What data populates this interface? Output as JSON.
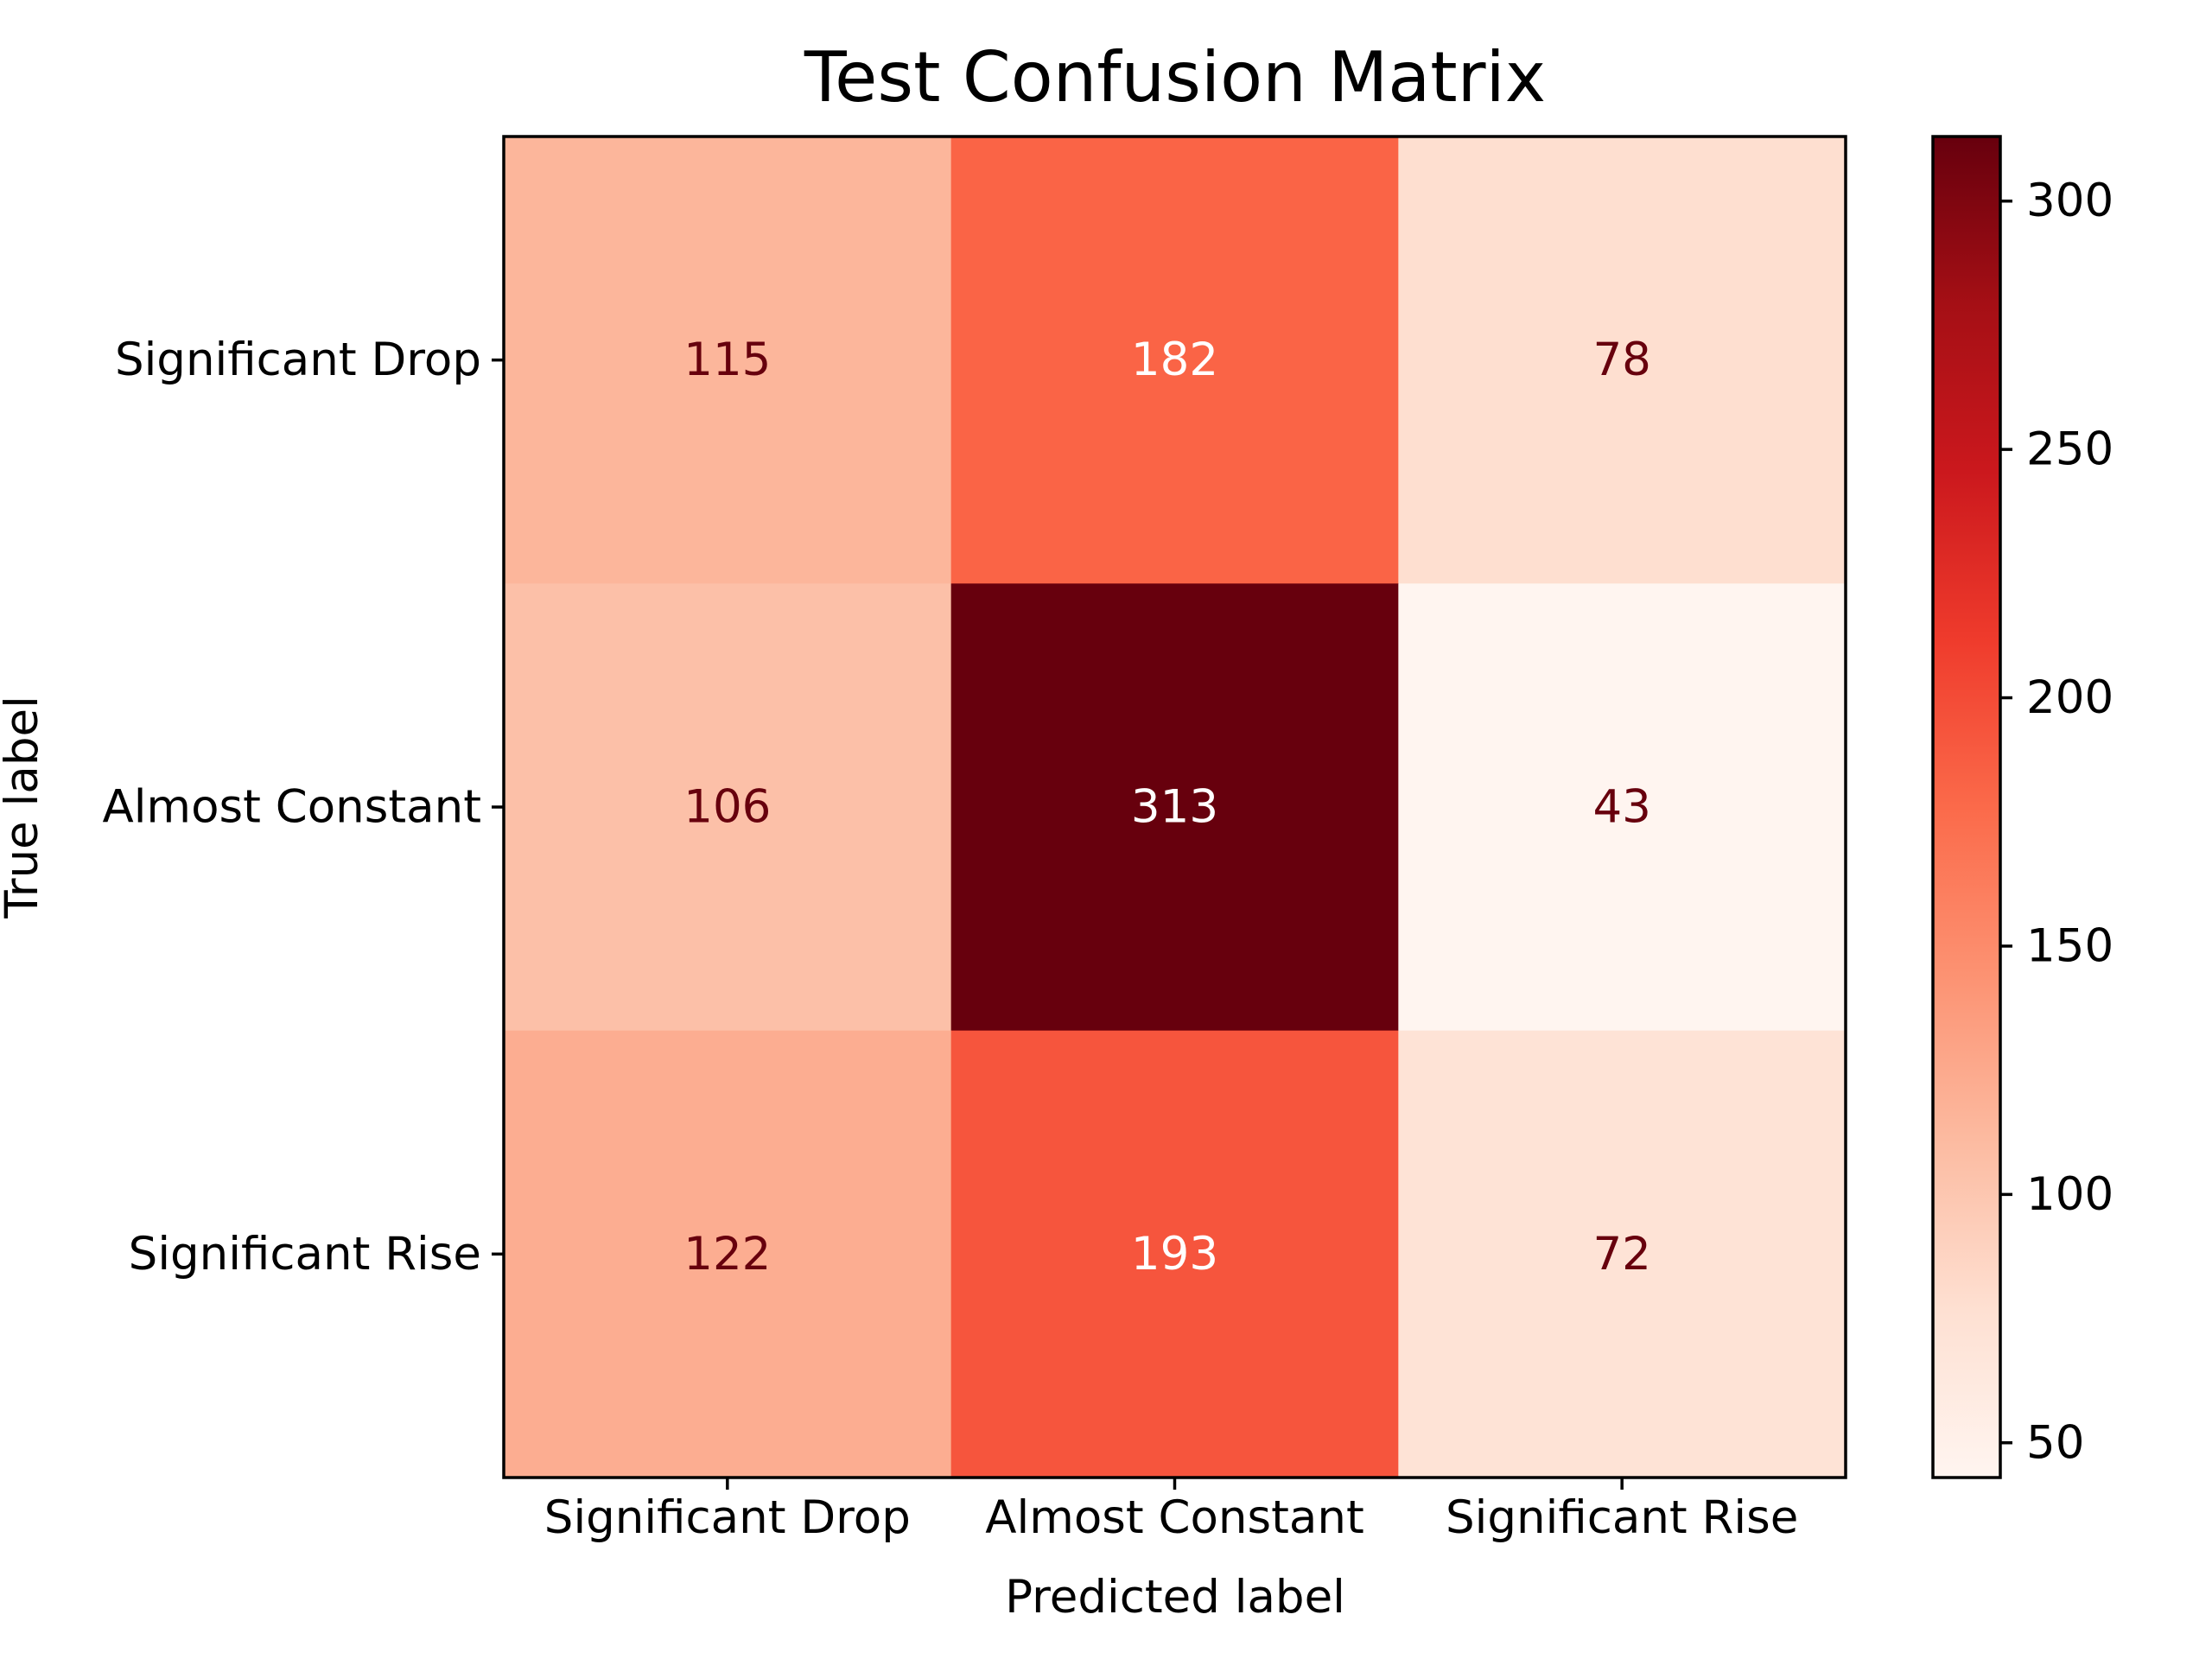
{
  "chart_data": {
    "type": "heatmap",
    "title": "Test Confusion Matrix",
    "xlabel": "Predicted label",
    "ylabel": "True label",
    "x_categories": [
      "Significant Drop",
      "Almost Constant",
      "Significant Rise"
    ],
    "y_categories": [
      "Significant Drop",
      "Almost Constant",
      "Significant Rise"
    ],
    "values": [
      [
        115,
        182,
        78
      ],
      [
        106,
        313,
        43
      ],
      [
        122,
        193,
        72
      ]
    ],
    "colormap": "Reds",
    "colorbar": {
      "range": [
        43,
        313
      ],
      "ticks": [
        50,
        100,
        150,
        200,
        250,
        300
      ]
    },
    "value_label_colors": {
      "on_light": "#67000d",
      "on_dark": "#ffffff"
    }
  }
}
